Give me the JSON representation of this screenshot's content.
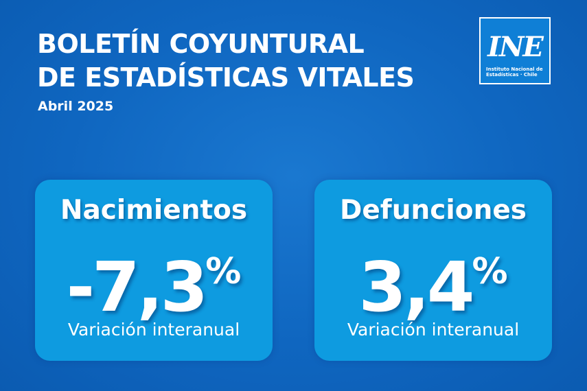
{
  "header": {
    "title_line1": "BOLETÍN COYUNTURAL",
    "title_line2": "DE ESTADÍSTICAS VITALES",
    "date": "Abril 2025"
  },
  "logo": {
    "mark": "INE",
    "org_line1": "Instituto Nacional de",
    "org_line2": "Estadísticas · Chile",
    "background_color": "#0f7fd6"
  },
  "cards": [
    {
      "label": "Nacimientos",
      "value": "-7,3",
      "unit": "%",
      "note": "Variación interanual"
    },
    {
      "label": "Defunciones",
      "value": "3,4",
      "unit": "%",
      "note": "Variación interanual"
    }
  ],
  "colors": {
    "background": "#0f66c0",
    "card": "#0e9be0",
    "text": "#ffffff"
  }
}
